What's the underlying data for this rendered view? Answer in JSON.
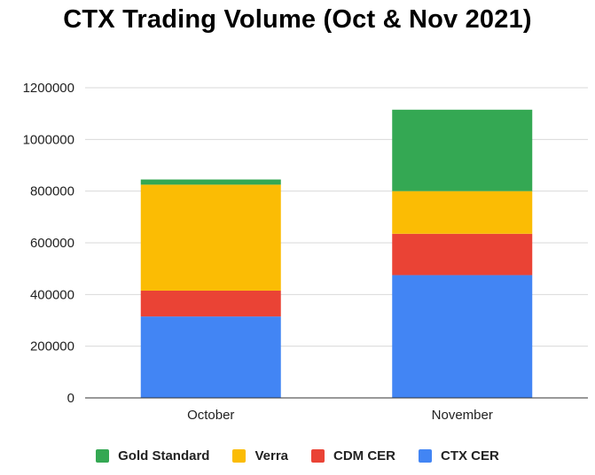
{
  "chart_data": {
    "type": "bar",
    "stacked": true,
    "title": "CTX Trading Volume (Oct & Nov 2021)",
    "xlabel": "",
    "ylabel": "",
    "categories": [
      "October",
      "November"
    ],
    "ylim": [
      0,
      1200000
    ],
    "yticks": [
      "0",
      "200000",
      "400000",
      "600000",
      "800000",
      "1000000",
      "1200000"
    ],
    "grid": true,
    "legend_position": "bottom",
    "series": [
      {
        "name": "CTX CER",
        "color": "#4285F4",
        "values": [
          315000,
          475000
        ]
      },
      {
        "name": "CDM CER",
        "color": "#EA4335",
        "values": [
          100000,
          160000
        ]
      },
      {
        "name": "Verra",
        "color": "#FBBC04",
        "values": [
          410000,
          165000
        ]
      },
      {
        "name": "Gold Standard",
        "color": "#34A853",
        "values": [
          20000,
          315000
        ]
      }
    ],
    "legend_order": [
      3,
      2,
      1,
      0
    ]
  }
}
